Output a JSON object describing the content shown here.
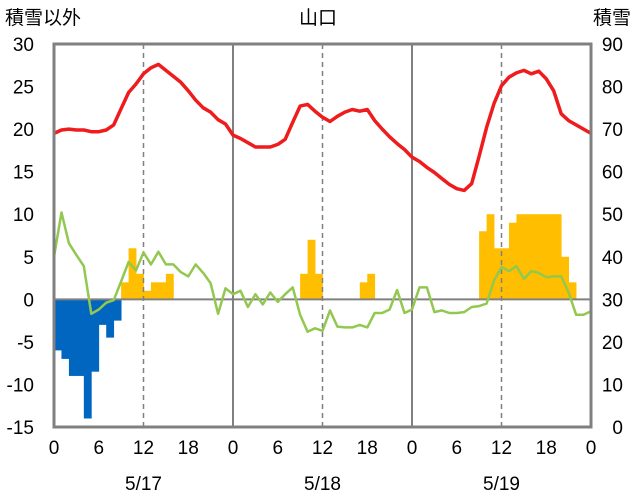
{
  "chart_data": {
    "type": "bar+line",
    "title": "山口",
    "left_axis_label": "積雪以外",
    "right_axis_label": "積雪",
    "left_axis": {
      "min": -15,
      "max": 30,
      "step": 5,
      "ticks": [
        "30",
        "25",
        "20",
        "15",
        "10",
        "5",
        "0",
        "-5",
        "-10",
        "-15"
      ]
    },
    "right_axis": {
      "min": 0,
      "max": 90,
      "step": 10,
      "ticks": [
        "90",
        "80",
        "70",
        "60",
        "50",
        "40",
        "30",
        "20",
        "10",
        "0"
      ]
    },
    "x_ticks": [
      "0",
      "6",
      "12",
      "18",
      "0",
      "6",
      "12",
      "18",
      "0",
      "6",
      "12",
      "18",
      "0"
    ],
    "date_labels": [
      {
        "text": "5/17",
        "center_hour": 12
      },
      {
        "text": "5/18",
        "center_hour": 36
      },
      {
        "text": "5/19",
        "center_hour": 60
      }
    ],
    "hours_total": 72,
    "colors": {
      "temperature": "#ee1c1c",
      "wind": "#92c84f",
      "precip": "#ffbf00",
      "sunshine_neg": "#0066c0",
      "frame": "#808080",
      "zero_line": "#808080"
    },
    "series": [
      {
        "kind": "line",
        "color": "#ee1c1c",
        "axis": "left",
        "values": [
          19.5,
          19.9,
          20.0,
          19.9,
          19.9,
          19.7,
          19.7,
          19.9,
          20.5,
          22.4,
          24.3,
          25.3,
          26.5,
          27.2,
          27.6,
          26.9,
          26.2,
          25.5,
          24.5,
          23.4,
          22.5,
          22.0,
          21.1,
          20.6,
          19.3,
          18.9,
          18.4,
          17.9,
          17.9,
          17.9,
          18.2,
          18.8,
          20.8,
          22.7,
          22.9,
          22.1,
          21.4,
          20.9,
          21.5,
          22.0,
          22.3,
          22.1,
          22.3,
          21.0,
          20.0,
          19.1,
          18.3,
          17.6,
          16.7,
          16.2,
          15.5,
          14.9,
          14.2,
          13.5,
          13.0,
          12.8,
          13.6,
          16.8,
          20.2,
          23.0,
          25.1,
          26.1,
          26.6,
          26.9,
          26.5,
          26.8,
          25.9,
          24.5,
          21.8,
          21.0,
          20.5,
          20.0,
          19.5
        ]
      },
      {
        "kind": "line",
        "color": "#92c84f",
        "axis": "left",
        "values": [
          5.0,
          10.2,
          6.6,
          5.2,
          3.9,
          -1.7,
          -1.2,
          -0.4,
          -0.1,
          2.1,
          4.4,
          3.4,
          5.5,
          4.1,
          5.6,
          4.1,
          4.1,
          3.2,
          2.7,
          4.1,
          3.1,
          1.9,
          -1.7,
          1.3,
          0.6,
          1.0,
          -0.9,
          0.6,
          -0.6,
          0.8,
          -0.3,
          0.6,
          1.4,
          -1.8,
          -3.8,
          -3.4,
          -3.7,
          -1.3,
          -3.2,
          -3.3,
          -3.3,
          -3.0,
          -3.3,
          -1.6,
          -1.6,
          -1.2,
          1.1,
          -1.6,
          -1.2,
          1.4,
          1.4,
          -1.5,
          -1.3,
          -1.6,
          -1.6,
          -1.5,
          -0.9,
          -0.8,
          -0.5,
          2.2,
          3.8,
          3.3,
          3.9,
          2.4,
          3.3,
          3.1,
          2.6,
          2.7,
          2.7,
          0.8,
          -1.8,
          -1.8,
          -1.4
        ]
      },
      {
        "kind": "bar",
        "color": "#ffbf00",
        "axis": "left",
        "values": [
          [
            9,
            2
          ],
          [
            10,
            6
          ],
          [
            11,
            3
          ],
          [
            12,
            1
          ],
          [
            13,
            2
          ],
          [
            14,
            2
          ],
          [
            15,
            3
          ],
          [
            33,
            3
          ],
          [
            34,
            7
          ],
          [
            35,
            3
          ],
          [
            41,
            2
          ],
          [
            42,
            3
          ],
          [
            57,
            8
          ],
          [
            58,
            10
          ],
          [
            59,
            6
          ],
          [
            60,
            6
          ],
          [
            61,
            9
          ],
          [
            62,
            10
          ],
          [
            63,
            10
          ],
          [
            64,
            10
          ],
          [
            65,
            10
          ],
          [
            66,
            10
          ],
          [
            67,
            10
          ],
          [
            68,
            5
          ],
          [
            69,
            2
          ]
        ]
      },
      {
        "kind": "bar",
        "color": "#0066c0",
        "axis": "left",
        "values": [
          [
            0,
            -6
          ],
          [
            1,
            -7
          ],
          [
            2,
            -9
          ],
          [
            3,
            -9
          ],
          [
            4,
            -14
          ],
          [
            5,
            -8.5
          ],
          [
            6,
            -3
          ],
          [
            7,
            -4.5
          ],
          [
            8,
            -2.5
          ]
        ]
      }
    ]
  }
}
